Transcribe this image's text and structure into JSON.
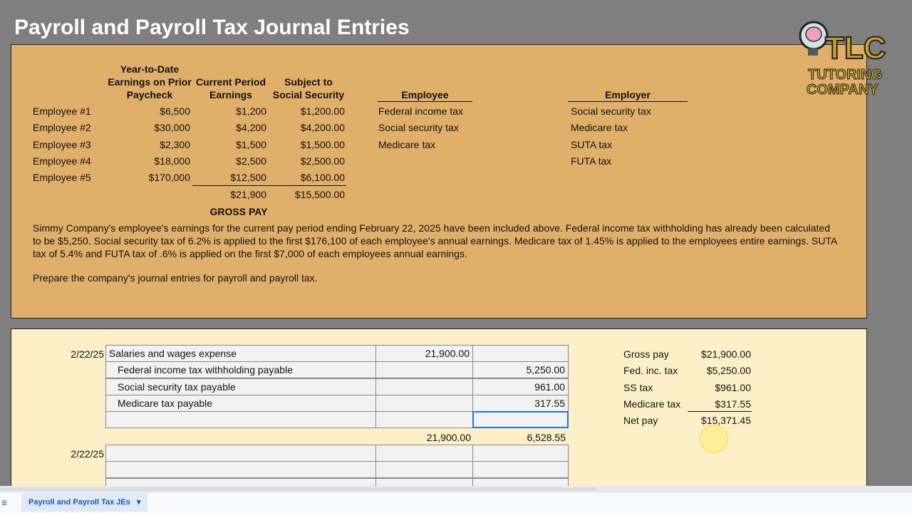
{
  "title": "Payroll and Payroll Tax Journal Entries",
  "logo": {
    "line1": "TLC",
    "line2": "TUTORING",
    "line3": "COMPANY"
  },
  "earnings": {
    "headers": {
      "ytd": [
        "Year-to-Date",
        "Earnings on Prior",
        "Paycheck"
      ],
      "current": [
        "Current Period",
        "Earnings"
      ],
      "subject": [
        "Subject to",
        "Social Security"
      ]
    },
    "rows": [
      {
        "name": "Employee #1",
        "ytd": "$6,500",
        "current": "$1,200",
        "subject": "$1,200.00"
      },
      {
        "name": "Employee #2",
        "ytd": "$30,000",
        "current": "$4,200",
        "subject": "$4,200.00"
      },
      {
        "name": "Employee #3",
        "ytd": "$2,300",
        "current": "$1,500",
        "subject": "$1,500.00"
      },
      {
        "name": "Employee #4",
        "ytd": "$18,000",
        "current": "$2,500",
        "subject": "$2,500.00"
      },
      {
        "name": "Employee #5",
        "ytd": "$170,000",
        "current": "$12,500",
        "subject": "$6,100.00"
      }
    ],
    "total_current": "$21,900",
    "total_subject": "$15,500.00",
    "gross_pay_label": "GROSS PAY"
  },
  "employee_taxes": {
    "header": "Employee",
    "items": [
      "Federal income tax",
      "Social security tax",
      "Medicare tax"
    ]
  },
  "employer_taxes": {
    "header": "Employer",
    "items": [
      "Social security tax",
      "Medicare tax",
      "SUTA tax",
      "FUTA tax"
    ]
  },
  "paragraph": "Simmy Company's employee's earnings for the current pay period ending February 22, 2025 have been included above. Federal income tax withholding has already been calculated to be $5,250. Social security tax of 6.2% is applied to the first $176,100 of each employee's annual earnings. Medicare tax of 1.45% is applied to the employees entire earnings. SUTA tax of 5.4% and FUTA tax of .6% is applied on the first $7,000 of each employees annual earnings.",
  "instruction": "Prepare the company's journal entries for payroll and payroll tax.",
  "journal1": {
    "date": "2/22/25",
    "rows": [
      {
        "account": "Salaries and wages expense",
        "debit": "21,900.00",
        "credit": "",
        "indent": false
      },
      {
        "account": "Federal income tax withholding payable",
        "debit": "",
        "credit": "5,250.00",
        "indent": true
      },
      {
        "account": "Social security tax payable",
        "debit": "",
        "credit": "961.00",
        "indent": true
      },
      {
        "account": "Medicare tax payable",
        "debit": "",
        "credit": "317.55",
        "indent": true
      },
      {
        "account": "",
        "debit": "",
        "credit": "",
        "indent": true
      }
    ],
    "total_debit": "21,900.00",
    "total_credit": "6,528.55"
  },
  "journal2": {
    "date": "2/22/25",
    "rows": [
      {
        "account": "",
        "debit": "",
        "credit": ""
      },
      {
        "account": "",
        "debit": "",
        "credit": ""
      },
      {
        "account": "",
        "debit": "",
        "credit": ""
      }
    ]
  },
  "summary": [
    {
      "label": "Gross pay",
      "value": "$21,900.00"
    },
    {
      "label": "Fed. inc. tax",
      "value": "$5,250.00"
    },
    {
      "label": "SS tax",
      "value": "$961.00"
    },
    {
      "label": "Medicare tax",
      "value": "$317.55"
    },
    {
      "label": "Net pay",
      "value": "$15,371.45"
    }
  ],
  "sheet_tab": "Payroll and Payroll Tax JEs"
}
